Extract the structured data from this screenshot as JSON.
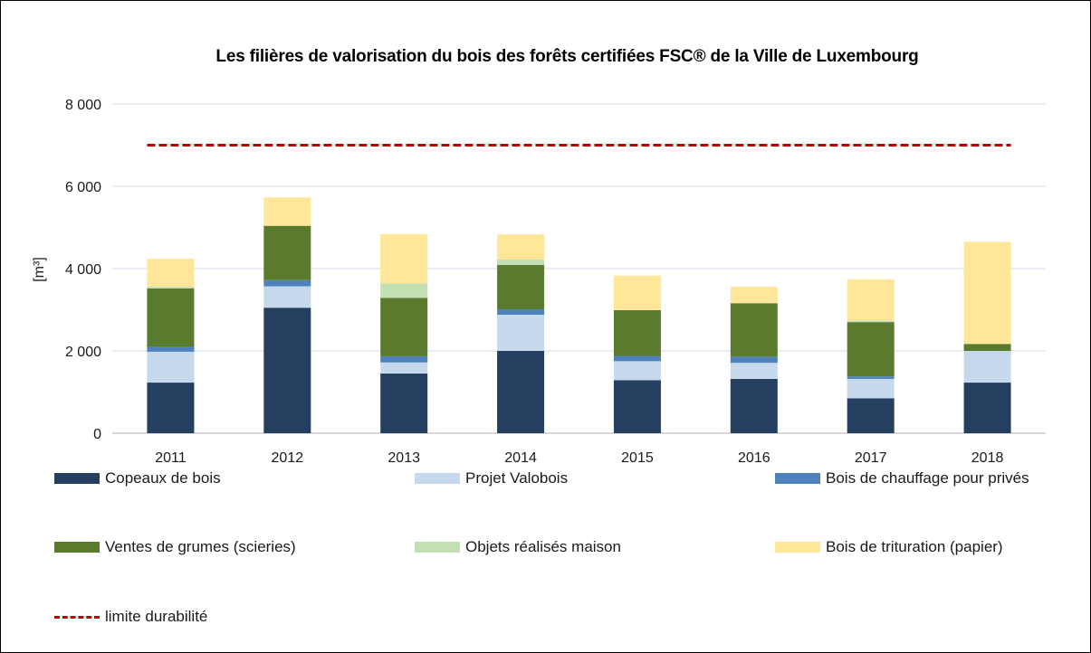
{
  "chart_data": {
    "type": "bar",
    "stacked": true,
    "title": "Les filières de valorisation du bois des forêts certifiées FSC® de la Ville de Luxembourg",
    "xlabel": "",
    "ylabel": "[m³]",
    "ylim": [
      0,
      8000
    ],
    "yticks": [
      0,
      2000,
      4000,
      6000,
      8000
    ],
    "ytick_labels": [
      "0",
      "2 000",
      "4 000",
      "6 000",
      "8 000"
    ],
    "grid": true,
    "legend_position": "bottom",
    "categories": [
      "2011",
      "2012",
      "2013",
      "2014",
      "2015",
      "2016",
      "2017",
      "2018"
    ],
    "series": [
      {
        "name": "Copeaux de bois",
        "color": "#243f60",
        "values": [
          1230,
          3050,
          1450,
          2000,
          1290,
          1320,
          850,
          1230
        ]
      },
      {
        "name": "Projet Valobois",
        "color": "#c6d9ec",
        "values": [
          750,
          520,
          270,
          880,
          460,
          390,
          470,
          770
        ]
      },
      {
        "name": "Bois de chauffage pour privés",
        "color": "#4f81bd",
        "values": [
          130,
          150,
          150,
          130,
          130,
          150,
          60,
          0
        ]
      },
      {
        "name": "Ventes de grumes (scieries)",
        "color": "#5a7a2e",
        "values": [
          1410,
          1320,
          1420,
          1080,
          1110,
          1300,
          1320,
          170
        ]
      },
      {
        "name": "Objets réalisés maison",
        "color": "#c3dfb4",
        "values": [
          40,
          0,
          350,
          130,
          0,
          0,
          40,
          0
        ]
      },
      {
        "name": "Bois de trituration (papier)",
        "color": "#ffe699",
        "values": [
          680,
          690,
          1200,
          610,
          840,
          400,
          1000,
          2480
        ]
      }
    ],
    "reference_lines": [
      {
        "name": "limite durabilité",
        "color": "#c00000",
        "style": "dashed",
        "value": 7000
      }
    ]
  }
}
